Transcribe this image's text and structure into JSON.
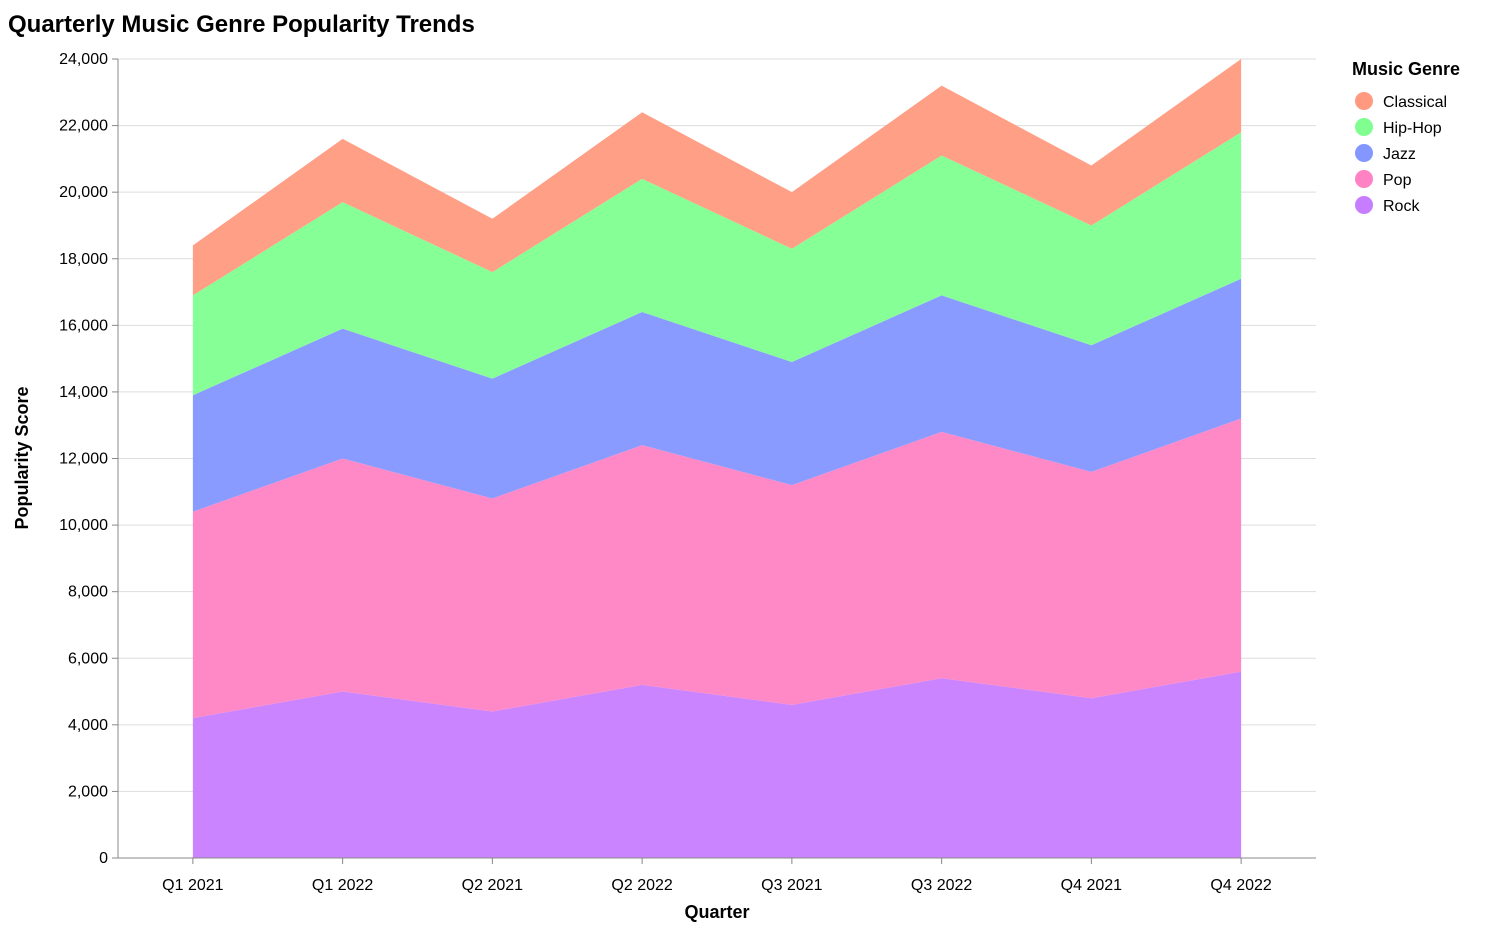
{
  "chart_data": {
    "type": "area",
    "stacked": true,
    "title": "Quarterly Music Genre Popularity Trends",
    "xlabel": "Quarter",
    "ylabel": "Popularity Score",
    "ylim": [
      0,
      24000
    ],
    "yticks": [
      0,
      2000,
      4000,
      6000,
      8000,
      10000,
      12000,
      14000,
      16000,
      18000,
      20000,
      22000,
      24000
    ],
    "ytick_labels": [
      "0",
      "2,000",
      "4,000",
      "6,000",
      "8,000",
      "10,000",
      "12,000",
      "14,000",
      "16,000",
      "18,000",
      "20,000",
      "22,000",
      "24,000"
    ],
    "grid": true,
    "legend_title": "Music Genre",
    "legend_position": "top-right",
    "categories": [
      "Q1 2021",
      "Q1 2022",
      "Q2 2021",
      "Q2 2022",
      "Q3 2021",
      "Q3 2022",
      "Q4 2021",
      "Q4 2022"
    ],
    "series": [
      {
        "name": "Rock",
        "color": "#c77dff",
        "values": [
          4200,
          5000,
          4400,
          5200,
          4600,
          5400,
          4800,
          5600
        ]
      },
      {
        "name": "Pop",
        "color": "#ff82c4",
        "values": [
          6200,
          7000,
          6400,
          7200,
          6600,
          7400,
          6800,
          7600
        ]
      },
      {
        "name": "Jazz",
        "color": "#8496ff",
        "values": [
          3500,
          3900,
          3600,
          4000,
          3700,
          4100,
          3800,
          4200
        ]
      },
      {
        "name": "Hip-Hop",
        "color": "#80ff90",
        "values": [
          3000,
          3800,
          3200,
          4000,
          3400,
          4200,
          3600,
          4400
        ]
      },
      {
        "name": "Classical",
        "color": "#ff9a80",
        "values": [
          1500,
          1900,
          1600,
          2000,
          1700,
          2100,
          1800,
          2200
        ]
      }
    ],
    "legend_order": [
      "Classical",
      "Hip-Hop",
      "Jazz",
      "Pop",
      "Rock"
    ]
  }
}
